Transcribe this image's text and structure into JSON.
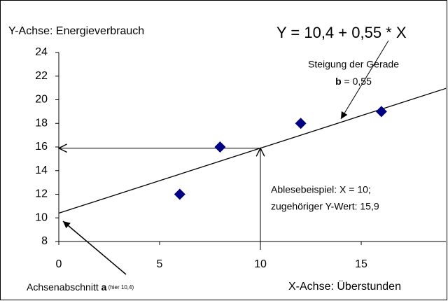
{
  "chart_data": {
    "type": "scatter",
    "y_label": "Y-Achse: Energieverbrauch",
    "x_label": "X-Achse: Überstunden",
    "x": [
      6,
      8,
      12,
      16
    ],
    "values": [
      12,
      16,
      18,
      19
    ],
    "color": "#000080",
    "xlim": [
      0,
      19.2
    ],
    "xticks": [
      0,
      5,
      10,
      15
    ],
    "ylim": [
      8,
      24
    ],
    "yticks": [
      8,
      10,
      12,
      14,
      16,
      18,
      20,
      22,
      24
    ],
    "regression": {
      "intercept": 10.4,
      "slope": 0.55,
      "label": "Y = 10,4 + 0,55 * X"
    },
    "reading": {
      "x": 10,
      "y": 15.9,
      "label_1": "Ablesebeispiel: X = 10;",
      "label_2": "zugehöriger Y-Wert: 15,9"
    },
    "slope_note": {
      "title": "Steigung der Gerade",
      "symbol": "b",
      "text": " = 0,55"
    },
    "intercept_note": {
      "text": "Achsenabschnitt ",
      "symbol": "a",
      "detail": " (hier 10,4)"
    }
  }
}
